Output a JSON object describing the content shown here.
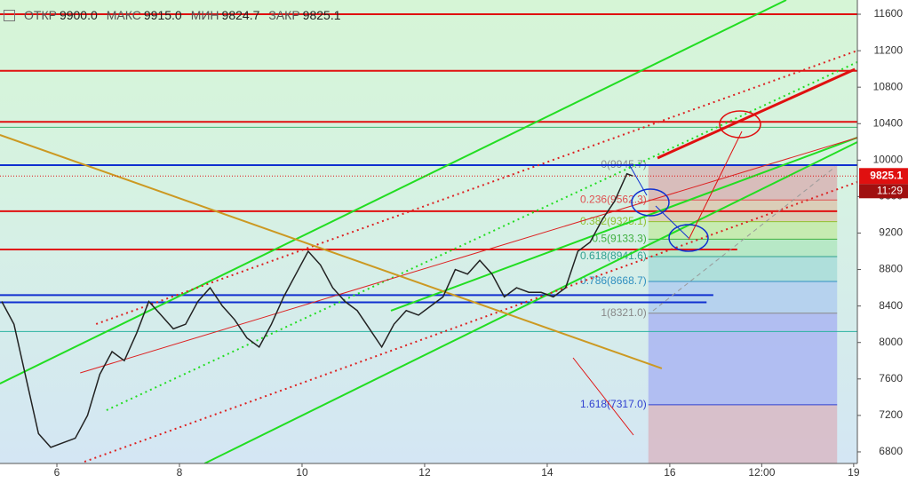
{
  "header": {
    "items": [
      {
        "label": "ОТКР",
        "value": "9900.0"
      },
      {
        "label": "МАКС",
        "value": "9915.0"
      },
      {
        "label": "МИН",
        "value": "9824.7"
      },
      {
        "label": "ЗАКР",
        "value": "9825.1"
      }
    ]
  },
  "chart_data": {
    "type": "line",
    "xlim": [
      5.072,
      19.06
    ],
    "ylim": [
      6673,
      11756
    ],
    "xticks": [
      6,
      8,
      10,
      12,
      14,
      16,
      {
        "value": 17.5,
        "label": "12:00"
      },
      19
    ],
    "yticks": [
      6800,
      7200,
      7600,
      8000,
      8400,
      8800,
      9200,
      9600,
      10000,
      10400,
      10800,
      11200,
      11600
    ],
    "series": [
      {
        "color": "#222222",
        "x": [
          5.1,
          5.3,
          5.5,
          5.7,
          5.9,
          6.1,
          6.3,
          6.5,
          6.7,
          6.9,
          7.1,
          7.3,
          7.5,
          7.7,
          7.9,
          8.1,
          8.3,
          8.5,
          8.7,
          8.9,
          9.1,
          9.3,
          9.5,
          9.7,
          9.9,
          10.1,
          10.3,
          10.5,
          10.7,
          10.9,
          11.1,
          11.3,
          11.5,
          11.7,
          11.9,
          12.1,
          12.3,
          12.5,
          12.7,
          12.9,
          13.1,
          13.3,
          13.5,
          13.7,
          13.9,
          14.1,
          14.3,
          14.5,
          14.7,
          14.9,
          15.1,
          15.3,
          15.4
        ],
        "values": [
          8450,
          8200,
          7600,
          7000,
          6850,
          6900,
          6950,
          7200,
          7650,
          7900,
          7800,
          8100,
          8450,
          8300,
          8150,
          8200,
          8450,
          8600,
          8400,
          8250,
          8050,
          7950,
          8200,
          8500,
          8750,
          9000,
          8850,
          8600,
          8450,
          8350,
          8150,
          7950,
          8200,
          8350,
          8300,
          8400,
          8500,
          8800,
          8750,
          8900,
          8750,
          8500,
          8600,
          8550,
          8550,
          8500,
          8600,
          9000,
          9100,
          9350,
          9550,
          9850,
          9825.1
        ]
      }
    ],
    "levels": [
      {
        "value": 11600,
        "color": "#e01010",
        "end": 19.06
      },
      {
        "value": 10980,
        "color": "#e01010",
        "end": 19.06
      },
      {
        "value": 10420,
        "color": "#e01010",
        "end": 19.06
      },
      {
        "value": 10360,
        "color": "#3cb371",
        "end": 19.06
      },
      {
        "value": 9945,
        "color": "#1030d0",
        "end": 19.06
      },
      {
        "value": 9440,
        "color": "#e01010",
        "end": 18.73
      },
      {
        "value": 9020,
        "color": "#e01010",
        "end": 17.1
      },
      {
        "value": 8520,
        "color": "#1030d0",
        "end": 16.71
      },
      {
        "value": 8440,
        "color": "#1030d0",
        "end": 16.6
      },
      {
        "value": 8120,
        "color": "#2ab3a0",
        "end": 19.06
      }
    ],
    "drawings": [
      {
        "color": "#22dd22",
        "style": "solid",
        "x": [
          5.07,
          17.9
        ],
        "y": [
          7549,
          11756
        ]
      },
      {
        "color": "#22dd22",
        "style": "solid",
        "x": [
          8.41,
          19.06
        ],
        "y": [
          6673,
          10198
        ]
      },
      {
        "color": "#22dd22",
        "style": "solid",
        "x": [
          11.45,
          19.06
        ],
        "y": [
          8348,
          10247
        ]
      },
      {
        "color": "#dd2222",
        "style": "dotted",
        "x": [
          6.64,
          19.06
        ],
        "y": [
          8202,
          11201
        ]
      },
      {
        "color": "#dd2222",
        "style": "dotted",
        "x": [
          6.45,
          19.06
        ],
        "y": [
          6692,
          9760
        ]
      },
      {
        "color": "#22dd22",
        "style": "dotted",
        "x": [
          6.81,
          19.06
        ],
        "y": [
          7257,
          11075
        ]
      },
      {
        "color": "#dd2222",
        "style": "thin",
        "x": [
          6.38,
          19.06
        ],
        "y": [
          7666,
          10247
        ]
      },
      {
        "color": "#cc9922",
        "style": "solid",
        "x": [
          5.07,
          15.87
        ],
        "y": [
          10276,
          7715
        ]
      },
      {
        "color": "#e01010",
        "style": "thick",
        "x": [
          15.8,
          19.02
        ],
        "y": [
          10023,
          10997
        ]
      }
    ],
    "fib": {
      "x": [
        15.65,
        18.73
      ],
      "levels": [
        {
          "value": 9945.7,
          "label": "0(9945.7)",
          "color": "#888888",
          "fill": "#d8b4b4"
        },
        {
          "value": 9562.3,
          "label": "0.236(9562.3)",
          "color": "#e05050",
          "fill": "#dcc8b0"
        },
        {
          "value": 9325.1,
          "label": "0.382(9325.1)",
          "color": "#90c030",
          "fill": "#c4eaa8"
        },
        {
          "value": 9133.3,
          "label": "0.5(9133.3)",
          "color": "#40b040",
          "fill": "#b2e6c0"
        },
        {
          "value": 8941.6,
          "label": "0.618(8941.6)",
          "color": "#30a090",
          "fill": "#a8dcd8"
        },
        {
          "value": 8668.7,
          "label": "0.786(8668.7)",
          "color": "#3090c0",
          "fill": "#b0cdee"
        },
        {
          "value": 8321.0,
          "label": "1(8321.0)",
          "color": "#888888",
          "fill": "#aab6f2"
        },
        {
          "value": 7317.0,
          "label": "1.618(7317.0)",
          "color": "#3040d0",
          "fill": "#d8b8c4"
        }
      ]
    },
    "price_label": {
      "value": 9825.1,
      "label": "9825.1",
      "time": "11:29"
    }
  }
}
